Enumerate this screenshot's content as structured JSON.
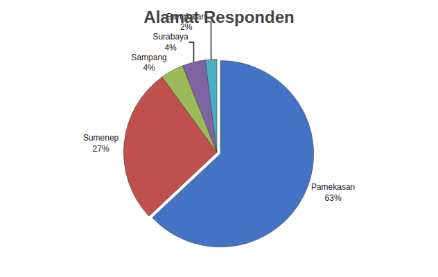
{
  "chart_data": {
    "type": "pie",
    "title": "Alamat Responden",
    "categories": [
      "Pamekasan",
      "Sumenep",
      "Sampang",
      "Surabaya",
      "Bangkalan"
    ],
    "values": [
      63,
      27,
      4,
      4,
      2
    ],
    "value_labels": [
      "63%",
      "27%",
      "4%",
      "4%",
      "2%"
    ],
    "colors": [
      "#4472C4",
      "#C0504D",
      "#9BBB59",
      "#8064A2",
      "#4BACC6"
    ],
    "data_labels": true
  }
}
